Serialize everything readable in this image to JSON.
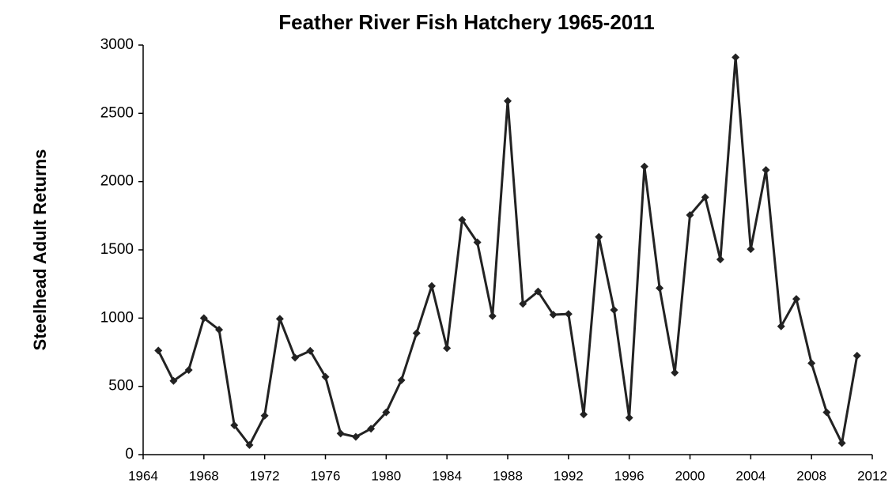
{
  "chart_data": {
    "type": "line",
    "title": "Feather River Fish Hatchery 1965-2011",
    "ylabel": "Steelhead Adult Returns",
    "x": [
      1965,
      1966,
      1967,
      1968,
      1969,
      1970,
      1971,
      1972,
      1973,
      1974,
      1975,
      1976,
      1977,
      1978,
      1979,
      1980,
      1981,
      1982,
      1983,
      1984,
      1985,
      1986,
      1987,
      1988,
      1989,
      1990,
      1991,
      1992,
      1993,
      1994,
      1995,
      1996,
      1997,
      1998,
      1999,
      2000,
      2001,
      2002,
      2003,
      2004,
      2005,
      2006,
      2007,
      2008,
      2009,
      2010,
      2011
    ],
    "series": [
      {
        "name": "Steelhead Adult Returns",
        "color": "#222222",
        "values": [
          762,
          540,
          620,
          1000,
          915,
          215,
          70,
          285,
          995,
          710,
          760,
          570,
          155,
          130,
          190,
          310,
          545,
          890,
          1235,
          780,
          1720,
          1555,
          1015,
          2590,
          1105,
          1195,
          1025,
          1030,
          295,
          1595,
          1060,
          270,
          2110,
          1220,
          600,
          1755,
          1885,
          1430,
          2910,
          1505,
          2085,
          940,
          1140,
          670,
          310,
          85,
          725
        ]
      }
    ],
    "xlim": [
      1964,
      2012
    ],
    "xticks": [
      1964,
      1968,
      1972,
      1976,
      1980,
      1984,
      1988,
      1992,
      1996,
      2000,
      2004,
      2008,
      2012
    ],
    "ylim": [
      0,
      3000
    ],
    "yticks": [
      0,
      500,
      1000,
      1500,
      2000,
      2500,
      3000
    ],
    "grid": false
  }
}
